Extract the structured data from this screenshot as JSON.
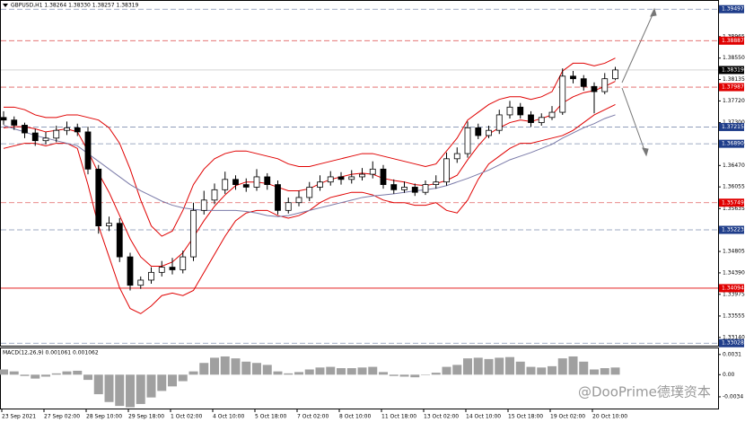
{
  "chart_data": {
    "type": "candlestick",
    "title": "GBPUSD,H1  1.38264 1.38330 1.38257 1.38319",
    "categories": [
      "23 Sep 2021",
      null,
      null,
      null,
      "27 Sep 02:00",
      null,
      null,
      null,
      "28 Sep 10:00",
      null,
      null,
      null,
      "29 Sep 18:00",
      null,
      null,
      null,
      "1 Oct 02:00",
      null,
      null,
      null,
      "4 Oct 10:00",
      null,
      null,
      null,
      "5 Oct 18:00",
      null,
      null,
      null,
      "7 Oct 02:00",
      null,
      null,
      null,
      "8 Oct 10:00",
      null,
      null,
      null,
      "11 Oct 18:00",
      null,
      null,
      null,
      "13 Oct 02:00",
      null,
      null,
      null,
      "14 Oct 10:00",
      null,
      null,
      null,
      "15 Oct 18:00",
      null,
      null,
      null,
      "19 Oct 02:00",
      null,
      null,
      null,
      "20 Oct 10:00",
      null,
      null
    ],
    "open": [
      1.374,
      1.3735,
      1.3725,
      1.371,
      1.3695,
      1.37,
      1.3715,
      1.372,
      1.3712,
      1.364,
      1.353,
      1.3535,
      1.347,
      1.3415,
      1.3425,
      1.344,
      1.345,
      1.3445,
      1.347,
      1.356,
      1.358,
      1.36,
      1.362,
      1.361,
      1.3605,
      1.3625,
      1.361,
      1.356,
      1.3575,
      1.3585,
      1.3605,
      1.3615,
      1.3625,
      1.362,
      1.3625,
      1.363,
      1.364,
      1.361,
      1.36,
      1.3605,
      1.3595,
      1.361,
      1.3615,
      1.366,
      1.367,
      1.372,
      1.3705,
      1.3715,
      1.3745,
      1.376,
      1.3745,
      1.373,
      1.374,
      1.375,
      1.382,
      1.3815,
      1.38,
      1.379,
      1.3815
    ],
    "high": [
      1.3752,
      1.3742,
      1.373,
      1.3718,
      1.3712,
      1.3724,
      1.3732,
      1.3728,
      1.3722,
      1.3648,
      1.3548,
      1.3545,
      1.3478,
      1.3432,
      1.345,
      1.3462,
      1.3468,
      1.3482,
      1.3575,
      1.3598,
      1.3612,
      1.3635,
      1.3628,
      1.3622,
      1.364,
      1.3632,
      1.3618,
      1.3585,
      1.3598,
      1.3615,
      1.3628,
      1.3636,
      1.3634,
      1.3638,
      1.3642,
      1.3655,
      1.3648,
      1.362,
      1.3616,
      1.3612,
      1.3618,
      1.3628,
      1.3672,
      1.3682,
      1.3732,
      1.3728,
      1.3724,
      1.3755,
      1.3772,
      1.3768,
      1.3752,
      1.3748,
      1.3762,
      1.3835,
      1.383,
      1.3822,
      1.3808,
      1.3826,
      1.3838
    ],
    "low": [
      1.3726,
      1.3716,
      1.37,
      1.3685,
      1.3688,
      1.3692,
      1.3706,
      1.3704,
      1.363,
      1.3515,
      1.352,
      1.346,
      1.3405,
      1.3408,
      1.3418,
      1.3432,
      1.3436,
      1.3438,
      1.3462,
      1.3552,
      1.3572,
      1.3592,
      1.36,
      1.3596,
      1.3598,
      1.36,
      1.3552,
      1.3554,
      1.3568,
      1.3578,
      1.3598,
      1.3608,
      1.361,
      1.3612,
      1.3618,
      1.3622,
      1.3602,
      1.3592,
      1.3594,
      1.3588,
      1.359,
      1.3602,
      1.3608,
      1.3652,
      1.3662,
      1.3698,
      1.37,
      1.3708,
      1.3738,
      1.3738,
      1.3722,
      1.3724,
      1.3735,
      1.3745,
      1.3806,
      1.3792,
      1.3748,
      1.3785,
      1.3812
    ],
    "close": [
      1.3735,
      1.3725,
      1.371,
      1.3695,
      1.37,
      1.3715,
      1.372,
      1.3712,
      1.364,
      1.353,
      1.3535,
      1.347,
      1.3415,
      1.3425,
      1.344,
      1.345,
      1.3445,
      1.347,
      1.356,
      1.358,
      1.36,
      1.362,
      1.361,
      1.3605,
      1.3625,
      1.361,
      1.356,
      1.3575,
      1.3585,
      1.3605,
      1.3615,
      1.3625,
      1.362,
      1.3625,
      1.363,
      1.364,
      1.361,
      1.36,
      1.3605,
      1.3595,
      1.361,
      1.3615,
      1.366,
      1.367,
      1.372,
      1.3705,
      1.3715,
      1.3745,
      1.376,
      1.3745,
      1.373,
      1.374,
      1.375,
      1.382,
      1.3815,
      1.38,
      1.379,
      1.3815,
      1.3832
    ],
    "lines": [
      {
        "color": "#e00000",
        "values": [
          1.376,
          1.376,
          1.3755,
          1.3745,
          1.374,
          1.374,
          1.3745,
          1.3745,
          1.374,
          1.3735,
          1.372,
          1.369,
          1.364,
          1.358,
          1.353,
          1.351,
          1.352,
          1.356,
          1.361,
          1.364,
          1.366,
          1.367,
          1.3675,
          1.3675,
          1.367,
          1.3665,
          1.366,
          1.365,
          1.3645,
          1.3645,
          1.365,
          1.3655,
          1.366,
          1.3665,
          1.367,
          1.367,
          1.3665,
          1.366,
          1.3655,
          1.365,
          1.3645,
          1.365,
          1.3675,
          1.37,
          1.3735,
          1.375,
          1.3765,
          1.3775,
          1.378,
          1.378,
          1.3775,
          1.378,
          1.379,
          1.383,
          1.3845,
          1.3845,
          1.384,
          1.3845,
          1.3855
        ]
      },
      {
        "color": "#e00000",
        "values": [
          1.372,
          1.3722,
          1.3722,
          1.3718,
          1.3712,
          1.3715,
          1.3718,
          1.3712,
          1.3675,
          1.3632,
          1.3595,
          1.355,
          1.3505,
          1.347,
          1.3452,
          1.3452,
          1.346,
          1.3478,
          1.3508,
          1.354,
          1.3568,
          1.359,
          1.3608,
          1.3615,
          1.3615,
          1.3612,
          1.3605,
          1.3598,
          1.3598,
          1.3602,
          1.3612,
          1.362,
          1.3625,
          1.363,
          1.3632,
          1.363,
          1.3622,
          1.3618,
          1.3615,
          1.361,
          1.3608,
          1.3612,
          1.3618,
          1.3628,
          1.3658,
          1.3685,
          1.3708,
          1.372,
          1.373,
          1.3735,
          1.3732,
          1.3738,
          1.3745,
          1.3768,
          1.378,
          1.3788,
          1.3792,
          1.38,
          1.381
        ]
      },
      {
        "color": "#e00000",
        "values": [
          1.368,
          1.3685,
          1.369,
          1.369,
          1.3685,
          1.369,
          1.369,
          1.368,
          1.361,
          1.353,
          1.347,
          1.341,
          1.337,
          1.336,
          1.3375,
          1.3395,
          1.34,
          1.3395,
          1.3405,
          1.344,
          1.3475,
          1.351,
          1.354,
          1.3555,
          1.356,
          1.356,
          1.355,
          1.3545,
          1.355,
          1.356,
          1.3575,
          1.3585,
          1.359,
          1.3595,
          1.3595,
          1.359,
          1.358,
          1.3575,
          1.3575,
          1.357,
          1.357,
          1.3575,
          1.356,
          1.3555,
          1.358,
          1.362,
          1.365,
          1.3665,
          1.368,
          1.369,
          1.369,
          1.3695,
          1.37,
          1.3705,
          1.3715,
          1.373,
          1.3745,
          1.3755,
          1.3765
        ]
      },
      {
        "color": "#7a7aa8",
        "values": [
          1.3725,
          1.3718,
          1.3712,
          1.3705,
          1.37,
          1.3695,
          1.369,
          1.3685,
          1.367,
          1.3655,
          1.364,
          1.3625,
          1.361,
          1.3598,
          1.3588,
          1.3578,
          1.357,
          1.3565,
          1.3562,
          1.356,
          1.356,
          1.356,
          1.356,
          1.3558,
          1.3555,
          1.355,
          1.3548,
          1.355,
          1.3555,
          1.356,
          1.3565,
          1.357,
          1.3575,
          1.358,
          1.3585,
          1.3588,
          1.359,
          1.3592,
          1.3595,
          1.3598,
          1.36,
          1.3603,
          1.3608,
          1.3615,
          1.3622,
          1.363,
          1.3638,
          1.3648,
          1.3658,
          1.3665,
          1.3672,
          1.368,
          1.3688,
          1.37,
          1.371,
          1.372,
          1.3728,
          1.3738,
          1.3745
        ]
      }
    ],
    "ylim": [
      1.3298,
      1.3964
    ],
    "yticks": [
      1.38965,
      {
        "value": 1.3855,
        "label": "1.38550"
      },
      1.38135,
      {
        "value": 1.3772,
        "label": "1.37720"
      },
      {
        "value": 1.373,
        "label": "1.37300"
      },
      1.36885,
      {
        "value": 1.3647,
        "label": "1.36470"
      },
      1.36055,
      1.35635,
      1.34805,
      {
        "value": 1.3439,
        "label": "1.34390"
      },
      1.33975,
      1.33555,
      {
        "value": 1.3314,
        "label": "1.33140"
      }
    ],
    "levels": [
      {
        "value": 1.39497,
        "color": "#1f3d8a"
      },
      {
        "value": 1.38887,
        "color": "#e00000"
      },
      {
        "value": 1.37987,
        "color": "#e00000"
      },
      {
        "value": 1.37215,
        "color": "#1f3d8a"
      },
      {
        "value": 1.3689,
        "label": "1.36890",
        "color": "#1f3d8a"
      },
      {
        "value": 1.35749,
        "color": "#e00000"
      },
      {
        "value": 1.35223,
        "color": "#1f3d8a"
      },
      {
        "value": 1.34094,
        "color": "#e00000"
      },
      {
        "value": 1.33028,
        "color": "#1f3d8a"
      }
    ],
    "current_price": 1.38319,
    "macd": {
      "title": "MACD(12,26,9) 0.001061 0.001062",
      "color": "#a0a0a0",
      "values": [
        0.0008,
        0.0005,
        -0.0002,
        -0.0006,
        -0.0003,
        0.0002,
        0.0005,
        0.0006,
        -0.0008,
        -0.003,
        -0.0042,
        -0.0048,
        -0.005,
        -0.0045,
        -0.0035,
        -0.0025,
        -0.0018,
        -0.001,
        0.0005,
        0.0018,
        0.0026,
        0.0028,
        0.0025,
        0.002,
        0.0018,
        0.0015,
        0.0005,
        0.0002,
        0.0004,
        0.0008,
        0.0011,
        0.0012,
        0.001,
        0.001,
        0.0011,
        0.0012,
        0.0004,
        -0.0002,
        -0.0003,
        -0.0004,
        0.0,
        0.0003,
        0.0012,
        0.0015,
        0.0025,
        0.0026,
        0.0024,
        0.0026,
        0.0027,
        0.002,
        0.0012,
        0.0011,
        0.0013,
        0.0025,
        0.0028,
        0.002,
        0.0008,
        0.001,
        0.0011
      ],
      "ylim": [
        -0.0052,
        0.0039
      ],
      "yticks": [
        0.0031,
        {
          "value": 0,
          "label": "0.00"
        },
        -0.0034
      ]
    },
    "watermark": "@DooPrime德璞资本"
  }
}
